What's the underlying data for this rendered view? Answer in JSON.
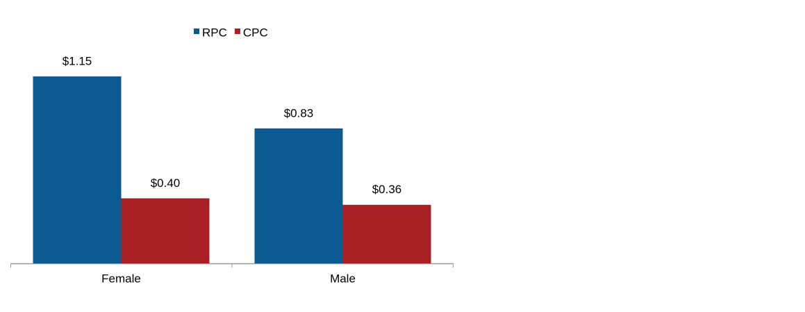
{
  "chart_data": {
    "type": "bar",
    "categories": [
      "Female",
      "Male"
    ],
    "series": [
      {
        "name": "RPC",
        "color": "#0b5a92",
        "values": [
          1.15,
          0.83
        ],
        "value_labels": [
          "$1.15",
          "$0.83"
        ]
      },
      {
        "name": "CPC",
        "color": "#a81f24",
        "values": [
          0.4,
          0.36
        ],
        "value_labels": [
          "$0.40",
          "$0.36"
        ]
      }
    ],
    "legend": "top"
  }
}
